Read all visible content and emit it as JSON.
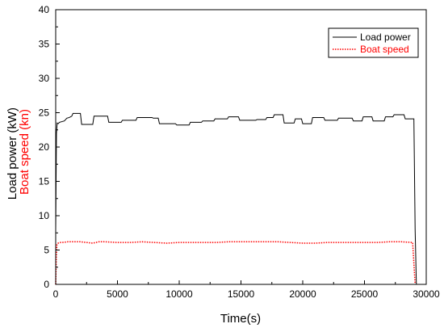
{
  "chart_data": {
    "type": "line",
    "xlabel": "Time(s)",
    "ylabel_parts": [
      {
        "text": "Load power (kW)",
        "color": "#000000"
      },
      {
        "text": "Boat speed (kn)",
        "color": "#ff0000"
      }
    ],
    "xlim": [
      0,
      30000
    ],
    "ylim": [
      0,
      40
    ],
    "x_ticks": [
      0,
      5000,
      10000,
      15000,
      20000,
      25000,
      30000
    ],
    "y_ticks": [
      0,
      5,
      10,
      15,
      20,
      25,
      30,
      35,
      40
    ],
    "grid": false,
    "legend_position": "top-right",
    "series": [
      {
        "name": "Load power",
        "color": "#000000",
        "style": "solid",
        "x": [
          0,
          60,
          120,
          200,
          300,
          500,
          700,
          900,
          1100,
          1300,
          1400,
          1600,
          1800,
          2000,
          2100,
          2200,
          3000,
          3100,
          4200,
          4300,
          5300,
          5400,
          6500,
          6600,
          7800,
          7900,
          8300,
          8400,
          9700,
          9800,
          10800,
          10900,
          11800,
          11900,
          12800,
          12900,
          13900,
          14000,
          14800,
          14900,
          16200,
          16300,
          17000,
          17100,
          17600,
          17700,
          18400,
          18500,
          19300,
          19400,
          19900,
          20000,
          20700,
          20800,
          21700,
          21800,
          22800,
          22900,
          24000,
          24100,
          24800,
          24900,
          25600,
          25700,
          26600,
          26700,
          27300,
          27400,
          28200,
          28300,
          29000,
          29100,
          29200
        ],
        "y": [
          8,
          22,
          23.5,
          23.4,
          23.6,
          23.7,
          23.8,
          24.2,
          24.3,
          24.5,
          24.9,
          24.9,
          24.9,
          24.9,
          23.3,
          23.3,
          23.3,
          24.5,
          24.5,
          23.6,
          23.6,
          23.9,
          23.9,
          24.3,
          24.3,
          24.2,
          24.2,
          23.4,
          23.4,
          23.2,
          23.2,
          23.6,
          23.6,
          23.8,
          23.8,
          24.1,
          24.1,
          24.4,
          24.4,
          23.9,
          23.9,
          24.0,
          24.0,
          24.3,
          24.3,
          24.7,
          24.7,
          23.5,
          23.5,
          24.1,
          24.1,
          23.4,
          23.4,
          24.3,
          24.3,
          23.9,
          23.9,
          24.2,
          24.2,
          23.8,
          23.8,
          24.4,
          24.4,
          23.8,
          23.8,
          24.4,
          24.4,
          24.7,
          24.7,
          24.1,
          24.1,
          8,
          0
        ]
      },
      {
        "name": "Boat speed",
        "color": "#ff0000",
        "style": "dotted",
        "x": [
          0,
          50,
          100,
          200,
          300,
          500,
          1000,
          1500,
          2000,
          2500,
          3000,
          3500,
          4000,
          5000,
          6000,
          7000,
          8000,
          9000,
          10000,
          11000,
          12000,
          13000,
          14000,
          15000,
          16000,
          17000,
          18000,
          19000,
          20000,
          21000,
          22000,
          23000,
          24000,
          25000,
          26000,
          27000,
          28000,
          28900,
          29000,
          29100
        ],
        "y": [
          0,
          4,
          5.8,
          6.0,
          6.1,
          6.1,
          6.2,
          6.2,
          6.2,
          6.1,
          6.0,
          6.2,
          6.2,
          6.1,
          6.1,
          6.2,
          6.1,
          6.0,
          6.1,
          6.1,
          6.1,
          6.1,
          6.2,
          6.2,
          6.2,
          6.2,
          6.2,
          6.1,
          6.0,
          6.0,
          6.1,
          6.1,
          6.1,
          6.1,
          6.1,
          6.2,
          6.2,
          6.1,
          3,
          0
        ]
      }
    ]
  }
}
